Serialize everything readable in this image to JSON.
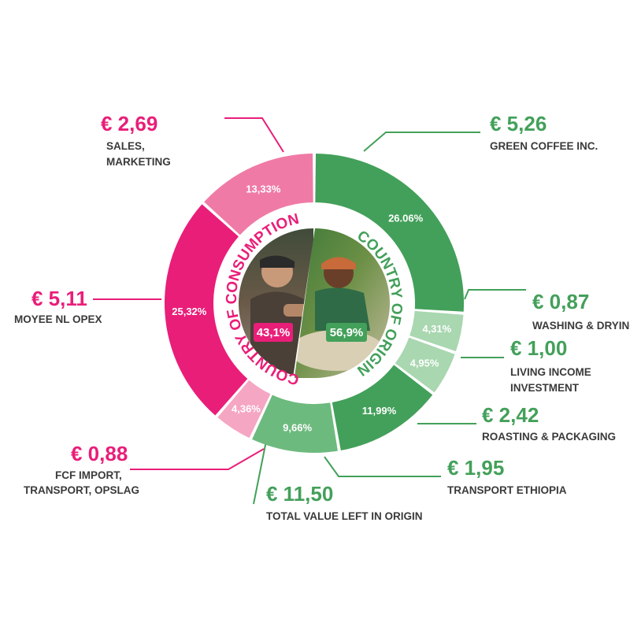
{
  "colors": {
    "pink_dark": "#e91e79",
    "pink_mid": "#f07aa6",
    "pink_light": "#f5a6c3",
    "green_dark": "#43a05a",
    "green_mid": "#6dba7e",
    "green_light": "#a9d7b0",
    "text_dark": "#3a3a3a"
  },
  "center": {
    "consumption_pct": "43,1%",
    "origin_pct": "56,9%",
    "consumption_title": "COUNTRY OF CONSUMPTION",
    "origin_title": "COUNTRY OF ORIGIN"
  },
  "chart_data": {
    "type": "pie",
    "subtype": "donut",
    "unit": "€",
    "slices": [
      {
        "label": "GREEN COFFEE INC.",
        "value": 5.26,
        "amount": "€ 5,26",
        "percent": 26.06,
        "percent_label": "26.06%",
        "group": "origin",
        "color": "#43a05a"
      },
      {
        "label": "WASHING & DRYING",
        "value": 0.87,
        "amount": "€ 0,87",
        "percent": 4.31,
        "percent_label": "4,31%",
        "group": "origin",
        "color": "#a9d7b0"
      },
      {
        "label": "LIVING INCOME INVESTMENT",
        "value": 1.0,
        "amount": "€ 1,00",
        "percent": 4.95,
        "percent_label": "4,95%",
        "group": "origin",
        "color": "#a9d7b0"
      },
      {
        "label": "ROASTING & PACKAGING",
        "value": 2.42,
        "amount": "€ 2,42",
        "percent": 11.99,
        "percent_label": "11,99%",
        "group": "origin",
        "color": "#43a05a"
      },
      {
        "label": "TRANSPORT ETHIOPIA",
        "value": 1.95,
        "amount": "€ 1,95",
        "percent": 9.66,
        "percent_label": "9,66%",
        "group": "origin",
        "color": "#6dba7e"
      },
      {
        "label": "FCF IMPORT, TRANSPORT, OPSLAG",
        "value": 0.88,
        "amount": "€ 0,88",
        "percent": 4.36,
        "percent_label": "4,36%",
        "group": "consumption",
        "color": "#f5a6c3"
      },
      {
        "label": "MOYEE NL OPEX",
        "value": 5.11,
        "amount": "€ 5,11",
        "percent": 25.32,
        "percent_label": "25,32%",
        "group": "consumption",
        "color": "#e91e79"
      },
      {
        "label": "SALES, MARKETING",
        "value": 2.69,
        "amount": "€ 2,69",
        "percent": 13.33,
        "percent_label": "13,33%",
        "group": "consumption",
        "color": "#f07aa6"
      }
    ],
    "summary": {
      "label": "TOTAL VALUE LEFT IN ORIGIN",
      "amount": "€ 11,50",
      "value": 11.5
    }
  },
  "callouts": {
    "green_coffee": {
      "amount": "€ 5,26",
      "line1": "GREEN COFFEE INC.",
      "line2": ""
    },
    "washing": {
      "amount": "€ 0,87",
      "line1": "WASHING & DRYING",
      "line2": ""
    },
    "living_income": {
      "amount": "€ 1,00",
      "line1": "LIVING INCOME",
      "line2": "INVESTMENT"
    },
    "roasting": {
      "amount": "€ 2,42",
      "line1": "ROASTING & PACKAGING",
      "line2": ""
    },
    "transport_eth": {
      "amount": "€ 1,95",
      "line1": "TRANSPORT ETHIOPIA",
      "line2": ""
    },
    "total_origin": {
      "amount": "€ 11,50",
      "line1": "TOTAL VALUE LEFT IN ORIGIN",
      "line2": ""
    },
    "fcf_import": {
      "amount": "€ 0,88",
      "line1": "FCF IMPORT,",
      "line2": "TRANSPORT, OPSLAG"
    },
    "moyee_opex": {
      "amount": "€ 5,11",
      "line1": "MOYEE NL OPEX",
      "line2": ""
    },
    "sales": {
      "amount": "€ 2,69",
      "line1": "SALES,",
      "line2": "MARKETING"
    }
  }
}
